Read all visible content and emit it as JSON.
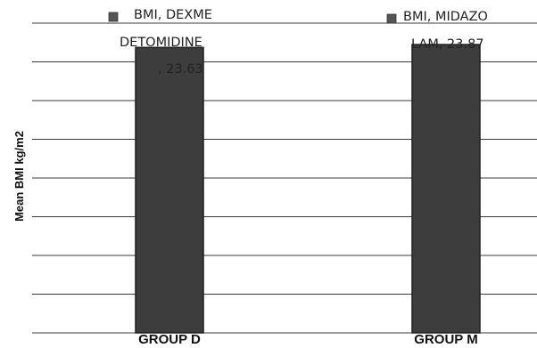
{
  "chart_data": {
    "type": "bar",
    "title": "",
    "xlabel": "",
    "ylabel": "Mean BMI kg/m2",
    "categories": [
      "GROUP D",
      "GROUP M"
    ],
    "series": [
      {
        "name": "BMI",
        "values": [
          23.63,
          23.87
        ]
      }
    ],
    "data_labels": [
      [
        "BMI, DEXME",
        "DETOMIDINE",
        ", 23.63"
      ],
      [
        "BMI, MIDAZO",
        "LAM, 23.87"
      ]
    ],
    "ylim": [
      0,
      26.6
    ],
    "grid": true,
    "colors": {
      "bar": "#3d3d3d",
      "bar_edge": "#1f1f1f",
      "grid": "#3a3a3a",
      "marker": "#555555"
    }
  }
}
